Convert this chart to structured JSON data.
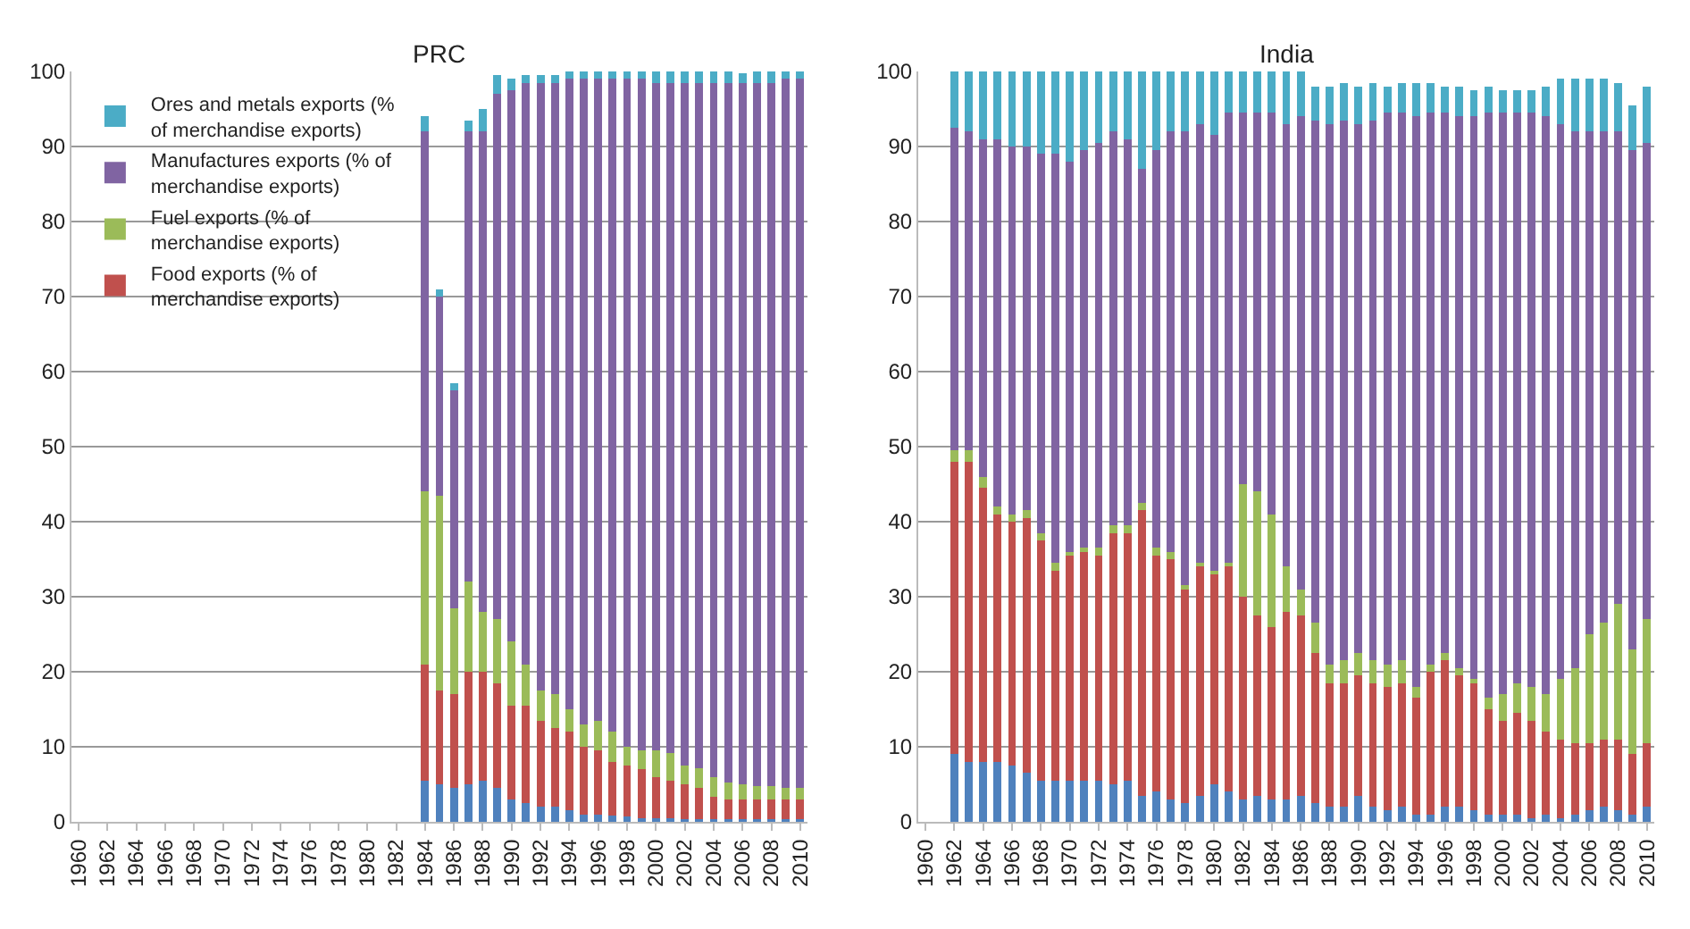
{
  "chart_data": [
    {
      "type": "bar",
      "title": "PRC",
      "stacked": true,
      "legend": "top left",
      "grid": "y",
      "ylim": [
        0,
        100
      ],
      "yticks": [
        0,
        10,
        20,
        30,
        40,
        50,
        60,
        70,
        80,
        90,
        100
      ],
      "categories": [
        "1960",
        null,
        "1962",
        null,
        "1964",
        null,
        "1966",
        null,
        "1968",
        null,
        "1970",
        null,
        "1972",
        null,
        "1974",
        null,
        "1976",
        null,
        "1978",
        null,
        "1980",
        null,
        "1982",
        null,
        "1984",
        null,
        "1986",
        null,
        "1988",
        null,
        "1990",
        null,
        "1992",
        null,
        "1994",
        null,
        "1996",
        null,
        "1998",
        null,
        "2000",
        null,
        "2002",
        null,
        "2004",
        null,
        "2006",
        null,
        "2008",
        null,
        "2010"
      ],
      "series": [
        {
          "color": "#4f81bd",
          "values": [
            null,
            null,
            null,
            null,
            null,
            null,
            null,
            null,
            null,
            null,
            null,
            null,
            null,
            null,
            null,
            null,
            null,
            null,
            null,
            null,
            null,
            null,
            null,
            null,
            5.5,
            5,
            4.5,
            5,
            5.5,
            4.5,
            3,
            2.5,
            2,
            2,
            1.5,
            1,
            1,
            0.8,
            0.7,
            0.5,
            0.5,
            0.5,
            0.4,
            0.4,
            0.3,
            0.3,
            0.3,
            0.3,
            0.3,
            0.3,
            0.3
          ]
        },
        {
          "name": "Food exports (% of merchandise exports)",
          "color": "#c0504d",
          "values": [
            null,
            null,
            null,
            null,
            null,
            null,
            null,
            null,
            null,
            null,
            null,
            null,
            null,
            null,
            null,
            null,
            null,
            null,
            null,
            null,
            null,
            null,
            null,
            null,
            15.5,
            12.5,
            12.5,
            15,
            14.5,
            14,
            12.5,
            13,
            11.5,
            10.5,
            10.5,
            9,
            8.5,
            7.2,
            6.8,
            6.5,
            5.5,
            5,
            4.6,
            4.1,
            3,
            2.7,
            2.7,
            2.7,
            2.7,
            2.7,
            2.7
          ]
        },
        {
          "name": "Fuel exports (% of merchandise exports)",
          "color": "#9bbb59",
          "values": [
            null,
            null,
            null,
            null,
            null,
            null,
            null,
            null,
            null,
            null,
            null,
            null,
            null,
            null,
            null,
            null,
            null,
            null,
            null,
            null,
            null,
            null,
            null,
            null,
            23,
            26,
            11.5,
            12,
            8,
            8.5,
            8.5,
            5.5,
            4,
            4.5,
            3,
            3,
            4,
            4,
            2.5,
            2.5,
            3.5,
            3.7,
            2.5,
            2.7,
            2.7,
            2.2,
            2,
            1.8,
            1.8,
            1.5,
            1.5
          ]
        },
        {
          "name": "Manufactures exports (% of merchandise exports)",
          "color": "#8064a2",
          "values": [
            null,
            null,
            null,
            null,
            null,
            null,
            null,
            null,
            null,
            null,
            null,
            null,
            null,
            null,
            null,
            null,
            null,
            null,
            null,
            null,
            null,
            null,
            null,
            null,
            48,
            26.5,
            29,
            60,
            64,
            70,
            73.5,
            77.5,
            81,
            81.5,
            84,
            86,
            85.5,
            87,
            89,
            89.5,
            89,
            89.3,
            91,
            91.3,
            92.5,
            93.3,
            93.5,
            93.7,
            93.7,
            94.5,
            94.5
          ]
        },
        {
          "name": "Ores and metals exports (% of merchandise exports)",
          "color": "#4bacc6",
          "values": [
            null,
            null,
            null,
            null,
            null,
            null,
            null,
            null,
            null,
            null,
            null,
            null,
            null,
            null,
            null,
            null,
            null,
            null,
            null,
            null,
            null,
            null,
            null,
            null,
            2,
            1,
            1,
            1.5,
            3,
            2.5,
            1.5,
            1,
            1,
            1,
            1,
            1,
            1,
            1,
            1,
            1,
            1.5,
            1.5,
            1.5,
            1.5,
            1.5,
            1.5,
            1.3,
            1.5,
            1.5,
            1,
            1
          ]
        }
      ]
    },
    {
      "type": "bar",
      "title": "India",
      "stacked": true,
      "grid": "y",
      "ylim": [
        0,
        100
      ],
      "yticks": [
        0,
        10,
        20,
        30,
        40,
        50,
        60,
        70,
        80,
        90,
        100
      ],
      "categories": [
        "1960",
        null,
        "1962",
        null,
        "1964",
        null,
        "1966",
        null,
        "1968",
        null,
        "1970",
        null,
        "1972",
        null,
        "1974",
        null,
        "1976",
        null,
        "1978",
        null,
        "1980",
        null,
        "1982",
        null,
        "1984",
        null,
        "1986",
        null,
        "1988",
        null,
        "1990",
        null,
        "1992",
        null,
        "1994",
        null,
        "1996",
        null,
        "1998",
        null,
        "2000",
        null,
        "2002",
        null,
        "2004",
        null,
        "2006",
        null,
        "2008",
        null,
        "2010"
      ],
      "series": [
        {
          "color": "#4f81bd",
          "values": [
            null,
            null,
            9,
            8,
            8,
            8,
            7.5,
            6.5,
            5.5,
            5.5,
            5.5,
            5.5,
            5.5,
            5,
            5.5,
            3.5,
            4,
            3,
            2.5,
            3.5,
            5,
            4,
            3,
            3.5,
            3,
            3,
            3.5,
            2.5,
            2,
            2,
            3.5,
            2,
            1.5,
            2,
            1,
            1,
            2,
            2,
            1.5,
            1,
            1,
            1,
            0.5,
            1,
            0.5,
            1,
            1.5,
            2,
            1.5,
            1,
            2
          ]
        },
        {
          "color": "#c0504d",
          "values": [
            null,
            null,
            39,
            40,
            36.5,
            33,
            32.5,
            34,
            32,
            28,
            30,
            30.5,
            30,
            33.5,
            33,
            38,
            31.5,
            32,
            28.5,
            30.5,
            28,
            30,
            27,
            24,
            23,
            25,
            24,
            20,
            16.5,
            16.5,
            16,
            16.5,
            16.5,
            16.5,
            15.5,
            19,
            19.5,
            17.5,
            17,
            14,
            12.5,
            13.5,
            13,
            11,
            10.5,
            9.5,
            9,
            9,
            9.5,
            8,
            8.5
          ]
        },
        {
          "color": "#9bbb59",
          "values": [
            null,
            null,
            1.5,
            1.5,
            1.5,
            1,
            1,
            1,
            1,
            1,
            0.5,
            0.5,
            1,
            1,
            1,
            1,
            1,
            1,
            0.5,
            0.5,
            0.5,
            0.5,
            15,
            16.5,
            15,
            6,
            3.5,
            4,
            2.5,
            3,
            3,
            3,
            3,
            3,
            1.5,
            1,
            1,
            1,
            0.5,
            1.5,
            3.5,
            4,
            4.5,
            5,
            8,
            10,
            14.5,
            15.5,
            18,
            14,
            16.5
          ]
        },
        {
          "color": "#8064a2",
          "values": [
            null,
            null,
            43,
            42.5,
            45,
            49,
            49,
            48.5,
            50.5,
            54.5,
            52,
            53,
            54,
            52.5,
            51.5,
            44.5,
            53,
            56,
            60.5,
            58.5,
            58,
            60,
            49.5,
            50.5,
            53.5,
            59,
            63,
            67,
            72,
            72,
            70.5,
            72,
            73.5,
            73,
            76,
            73.5,
            72,
            73.5,
            75,
            78,
            77.5,
            76,
            76.5,
            77,
            74,
            71.5,
            67,
            65.5,
            63,
            66.5,
            63.5
          ]
        },
        {
          "color": "#4bacc6",
          "values": [
            null,
            null,
            7.5,
            8,
            9,
            9,
            10,
            10,
            11,
            11,
            12,
            10.5,
            9.5,
            8,
            9,
            13,
            10.5,
            8,
            8,
            7,
            8.5,
            5.5,
            5.5,
            5.5,
            5.5,
            7,
            6,
            4.5,
            5,
            5,
            5,
            5,
            3.5,
            4,
            4.5,
            4,
            3.5,
            4,
            3.5,
            3.5,
            3,
            3,
            3,
            4,
            6,
            7,
            7,
            7,
            6.5,
            6,
            7.5
          ]
        }
      ]
    }
  ]
}
